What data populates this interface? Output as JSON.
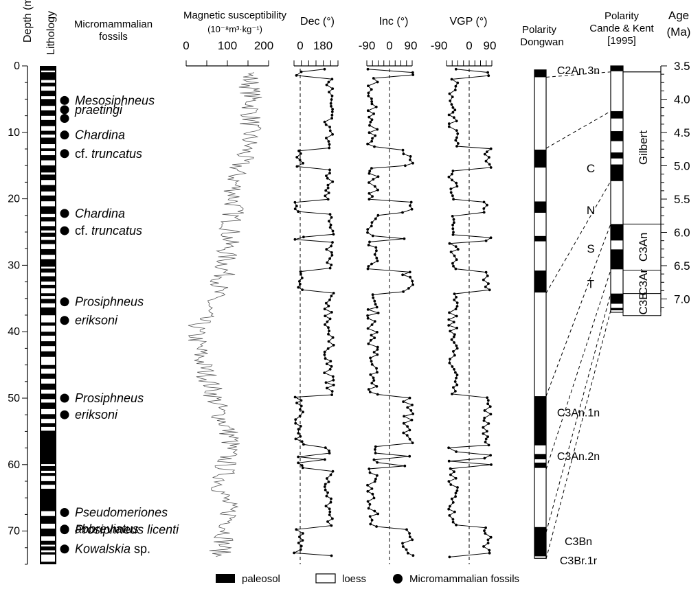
{
  "chart_data": {
    "type": "line",
    "depth_axis": {
      "label": "Depth (m)",
      "range": [
        0,
        75
      ],
      "tick_labels": [
        "0",
        "10",
        "20",
        "30",
        "40",
        "50",
        "60",
        "70"
      ]
    },
    "age_axis": {
      "label_line1": "Age",
      "label_line2": "(Ma)",
      "range": [
        3.5,
        7.25
      ],
      "tick_labels": [
        "3.5",
        "4.0",
        "4.5",
        "5.0",
        "5.5",
        "6.0",
        "6.5",
        "7.0"
      ]
    },
    "columns": {
      "lithology": "Lithology",
      "fossils": "Micromammalian fossils",
      "mag_line1": "Magnetic susceptibility",
      "mag_line2": "(10⁻⁸m³·kg⁻¹)",
      "dec": "Dec (°)",
      "inc": "Inc (°)",
      "vgp": "VGP (°)",
      "pol_dw_line1": "Polarity",
      "pol_dw_line2": "Dongwan",
      "pol_ck_line1": "Polarity",
      "pol_ck_line2": "Cande & Kent",
      "pol_ck_line3": "[1995]"
    },
    "mag_ticks": [
      "0",
      "100",
      "200"
    ],
    "dec_ticks": [
      "0",
      "180"
    ],
    "inc_ticks": [
      "-90",
      "0",
      "90"
    ],
    "vgp_ticks": [
      "-90",
      "0",
      "90"
    ],
    "legend": {
      "paleosol": "paleosol",
      "loess": "loess",
      "fossil": "Micromammalian fossils"
    },
    "fossils": [
      {
        "depth": 5.2,
        "label": "Mesosiphneus",
        "italic": true
      },
      {
        "depth": 6.6,
        "label": "praetingi",
        "italic": true
      },
      {
        "depth": 7.9
      },
      {
        "depth": 10.4,
        "label": "Chardina",
        "italic": true
      },
      {
        "depth": 13.2,
        "label": "cf. truncatus",
        "mixed": [
          "cf. ",
          "truncatus"
        ]
      },
      {
        "depth": 22.2,
        "label": "Chardina",
        "italic": true
      },
      {
        "depth": 24.8,
        "label": "cf. truncatus",
        "mixed": [
          "cf. ",
          "truncatus"
        ]
      },
      {
        "depth": 35.5,
        "label": "Prosiphneus",
        "italic": true
      },
      {
        "depth": 38.3,
        "label": "eriksoni",
        "italic": true
      },
      {
        "depth": 50.0,
        "label": "Prosiphneus",
        "italic": true
      },
      {
        "depth": 52.5,
        "label": "eriksoni",
        "italic": true
      },
      {
        "depth": 67.2,
        "label": "Pseudomeriones",
        "italic": true
      },
      {
        "depth": 69.7,
        "label": "abbreviatus",
        "italic": true
      },
      {
        "depth": 69.8,
        "label": "Prosiphneus licenti",
        "italic": true
      },
      {
        "depth": 72.7,
        "label": "Kowalskia sp.",
        "mixed": [
          "Kowalskia",
          " sp."
        ]
      }
    ],
    "polarity_dongwan": {
      "normal_bands": [
        [
          0.6,
          1.7
        ],
        [
          12.6,
          15.3
        ],
        [
          20.4,
          22.1
        ],
        [
          25.6,
          26.4
        ],
        [
          30.8,
          34.1
        ],
        [
          49.7,
          57.1
        ],
        [
          58.4,
          59.2
        ],
        [
          59.7,
          60.5
        ],
        [
          69.4,
          73.8
        ]
      ],
      "labels": [
        {
          "depth": 0.6,
          "text": "C2An.3n"
        },
        {
          "depth": 15.4,
          "text": "C"
        },
        {
          "depth": 21.7,
          "text": "N"
        },
        {
          "depth": 27.5,
          "text": "S"
        },
        {
          "depth": 32.8,
          "text": "T"
        },
        {
          "depth": 52.1,
          "text": "C3An.1n"
        },
        {
          "depth": 58.7,
          "text": "C3An.2n"
        },
        {
          "depth": 71.5,
          "text": "C3Bn"
        },
        {
          "depth": 74.4,
          "text": "C3Br.1r"
        }
      ]
    },
    "polarity_ck": {
      "normal_ages": [
        [
          3.5,
          3.58
        ],
        [
          4.18,
          4.29
        ],
        [
          4.48,
          4.63
        ],
        [
          4.8,
          4.89
        ],
        [
          4.98,
          5.23
        ],
        [
          5.875,
          6.122
        ],
        [
          6.256,
          6.555
        ],
        [
          6.919,
          7.072
        ],
        [
          7.135,
          7.17
        ]
      ],
      "chron_labels": [
        {
          "from": 3.58,
          "to": 5.875,
          "text": "Gilbert"
        },
        {
          "from": 5.875,
          "to": 6.567,
          "text": "C3An"
        },
        {
          "from": 6.567,
          "to": 6.935,
          "text": "C3Ar"
        },
        {
          "from": 6.935,
          "to": 7.2,
          "text": "C3B"
        }
      ]
    },
    "correlations": [
      [
        1.7,
        3.59
      ],
      [
        12.4,
        4.18
      ],
      [
        34.2,
        5.23
      ],
      [
        49.7,
        5.875
      ],
      [
        60.7,
        6.567
      ],
      [
        70.2,
        6.919
      ],
      [
        74.2,
        7.17
      ]
    ]
  }
}
